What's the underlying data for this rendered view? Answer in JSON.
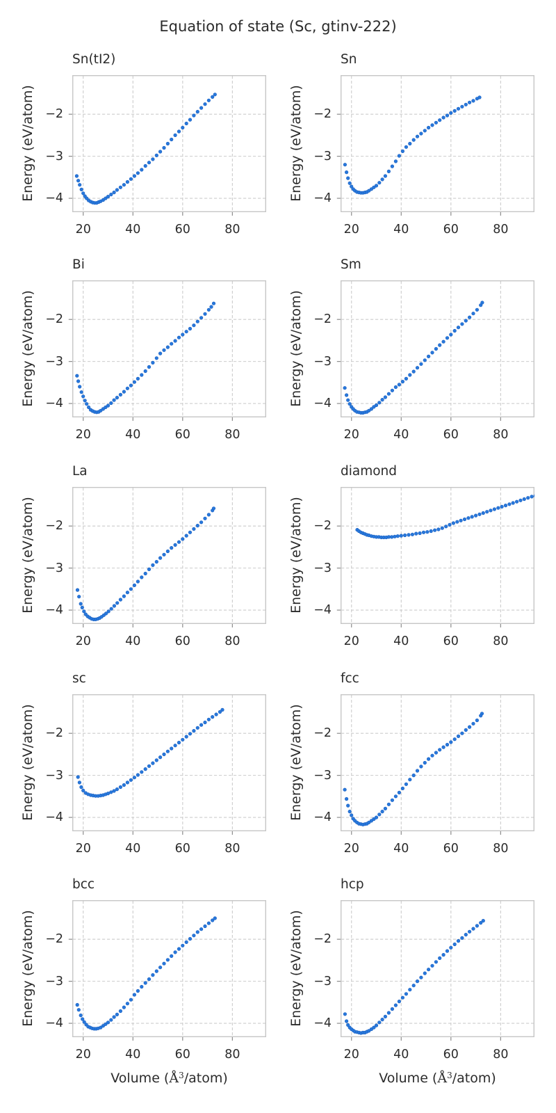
{
  "figure": {
    "title": "Equation of state (Sc, gtinv-222)",
    "ylabel": "Energy (eV/atom)",
    "xlabel": {
      "pre": "Volume (",
      "angstrom": "Å",
      "sup": "3",
      "post": "/atom)"
    },
    "x_ticks": {
      "values": [
        20,
        40,
        60,
        80
      ],
      "labels": [
        "20",
        "40",
        "60",
        "80"
      ]
    },
    "y_ticks": {
      "values": [
        -2,
        -3,
        -4
      ],
      "labels": [
        "−2",
        "−3",
        "−4"
      ]
    },
    "xlim": [
      15.6,
      93.6
    ],
    "ylim": [
      -4.33,
      -1.07
    ],
    "grid": "dashed",
    "legend": "none",
    "colors": {
      "marker": "#2878db",
      "marker_edge": "#1a5fc0",
      "grid": "#cccccc",
      "spine": "#c6c6c6",
      "tick_mark": "#8c8c8c",
      "text": "#2b2b2b",
      "background": "#ffffff"
    }
  },
  "chart_data": [
    {
      "type": "scatter",
      "title": "Sn(tI2)",
      "x": [
        17.4,
        18.0,
        18.6,
        19.3,
        20.0,
        20.7,
        21.4,
        22.2,
        23.0,
        23.8,
        24.6,
        25.4,
        26.2,
        27.0,
        28.0,
        29.0,
        30.0,
        31.2,
        32.4,
        33.6,
        35.0,
        36.4,
        37.8,
        39.2,
        40.6,
        42.0,
        43.5,
        45.0,
        46.5,
        48.0,
        49.5,
        51.0,
        52.5,
        54.0,
        55.5,
        57.0,
        58.5,
        60.0,
        61.5,
        63.0,
        64.5,
        66.0,
        67.5,
        69.0,
        70.5,
        72.0,
        73.0
      ],
      "y": [
        -3.47,
        -3.58,
        -3.68,
        -3.79,
        -3.88,
        -3.95,
        -4.0,
        -4.05,
        -4.08,
        -4.1,
        -4.11,
        -4.11,
        -4.09,
        -4.07,
        -4.04,
        -4.0,
        -3.96,
        -3.91,
        -3.86,
        -3.8,
        -3.74,
        -3.68,
        -3.61,
        -3.54,
        -3.47,
        -3.4,
        -3.32,
        -3.23,
        -3.15,
        -3.07,
        -2.98,
        -2.89,
        -2.8,
        -2.7,
        -2.6,
        -2.5,
        -2.41,
        -2.32,
        -2.22,
        -2.13,
        -2.03,
        -1.94,
        -1.85,
        -1.76,
        -1.67,
        -1.59,
        -1.53
      ]
    },
    {
      "type": "scatter",
      "title": "Sn",
      "x": [
        17.4,
        18.0,
        18.6,
        19.3,
        20.0,
        20.7,
        21.4,
        22.2,
        23.0,
        23.8,
        24.6,
        25.4,
        26.2,
        27.0,
        28.0,
        29.0,
        30.0,
        31.2,
        32.4,
        33.6,
        35.0,
        36.4,
        37.8,
        39.2,
        40.6,
        42.0,
        43.5,
        45.0,
        46.5,
        48.0,
        49.5,
        51.0,
        52.5,
        54.0,
        55.5,
        57.0,
        58.5,
        60.0,
        61.5,
        63.0,
        64.5,
        66.0,
        67.5,
        69.0,
        70.5,
        71.5
      ],
      "y": [
        -3.2,
        -3.38,
        -3.52,
        -3.64,
        -3.72,
        -3.78,
        -3.82,
        -3.85,
        -3.86,
        -3.87,
        -3.87,
        -3.86,
        -3.85,
        -3.82,
        -3.78,
        -3.74,
        -3.7,
        -3.63,
        -3.55,
        -3.47,
        -3.36,
        -3.24,
        -3.12,
        -2.99,
        -2.88,
        -2.78,
        -2.7,
        -2.61,
        -2.53,
        -2.46,
        -2.39,
        -2.32,
        -2.26,
        -2.2,
        -2.14,
        -2.08,
        -2.03,
        -1.97,
        -1.92,
        -1.87,
        -1.82,
        -1.77,
        -1.72,
        -1.68,
        -1.63,
        -1.6
      ]
    },
    {
      "type": "scatter",
      "title": "Bi",
      "x": [
        17.5,
        18.0,
        18.6,
        19.3,
        20.0,
        20.7,
        21.4,
        22.2,
        23.0,
        23.8,
        24.6,
        25.4,
        26.2,
        27.0,
        28.0,
        29.0,
        30.0,
        31.2,
        32.4,
        33.6,
        35.0,
        36.4,
        37.8,
        39.2,
        40.6,
        42.0,
        43.5,
        45.0,
        46.5,
        48.0,
        49.5,
        51.0,
        52.5,
        54.0,
        55.5,
        57.0,
        58.5,
        60.0,
        61.5,
        63.0,
        64.5,
        66.0,
        67.5,
        69.0,
        70.5,
        71.5,
        72.5
      ],
      "y": [
        -3.34,
        -3.47,
        -3.6,
        -3.73,
        -3.83,
        -3.93,
        -4.01,
        -4.09,
        -4.15,
        -4.18,
        -4.2,
        -4.21,
        -4.2,
        -4.17,
        -4.13,
        -4.09,
        -4.05,
        -3.99,
        -3.92,
        -3.86,
        -3.79,
        -3.72,
        -3.64,
        -3.57,
        -3.49,
        -3.41,
        -3.32,
        -3.23,
        -3.13,
        -3.03,
        -2.92,
        -2.81,
        -2.73,
        -2.66,
        -2.58,
        -2.51,
        -2.43,
        -2.36,
        -2.29,
        -2.22,
        -2.14,
        -2.05,
        -1.96,
        -1.87,
        -1.77,
        -1.7,
        -1.62
      ]
    },
    {
      "type": "scatter",
      "title": "Sm",
      "x": [
        17.3,
        18.0,
        18.6,
        19.3,
        20.0,
        20.7,
        21.4,
        22.2,
        23.0,
        23.8,
        24.6,
        25.4,
        26.2,
        27.0,
        28.0,
        29.0,
        30.0,
        31.2,
        32.4,
        33.6,
        35.0,
        36.4,
        37.8,
        39.2,
        40.6,
        42.0,
        43.5,
        45.0,
        46.5,
        48.0,
        49.5,
        51.0,
        52.5,
        54.0,
        55.5,
        57.0,
        58.5,
        60.0,
        61.5,
        63.0,
        64.5,
        66.0,
        67.5,
        69.0,
        70.5,
        72.0,
        72.6
      ],
      "y": [
        -3.63,
        -3.8,
        -3.92,
        -4.01,
        -4.08,
        -4.13,
        -4.17,
        -4.2,
        -4.21,
        -4.22,
        -4.22,
        -4.21,
        -4.2,
        -4.17,
        -4.13,
        -4.08,
        -4.04,
        -3.98,
        -3.91,
        -3.85,
        -3.77,
        -3.69,
        -3.61,
        -3.55,
        -3.48,
        -3.41,
        -3.32,
        -3.24,
        -3.15,
        -3.06,
        -2.97,
        -2.88,
        -2.79,
        -2.7,
        -2.61,
        -2.53,
        -2.44,
        -2.36,
        -2.27,
        -2.19,
        -2.11,
        -2.03,
        -1.95,
        -1.86,
        -1.77,
        -1.66,
        -1.6
      ]
    },
    {
      "type": "scatter",
      "title": "La",
      "x": [
        17.7,
        18.3,
        19.0,
        19.6,
        20.3,
        21.0,
        21.8,
        22.6,
        23.4,
        24.2,
        25.0,
        25.8,
        26.6,
        27.4,
        28.3,
        29.2,
        30.2,
        31.3,
        32.5,
        33.7,
        35.0,
        36.4,
        37.8,
        39.2,
        40.6,
        42.0,
        43.5,
        45.0,
        46.5,
        48.0,
        49.5,
        51.0,
        52.5,
        54.0,
        55.5,
        57.0,
        58.5,
        60.0,
        61.5,
        63.0,
        64.5,
        66.0,
        67.5,
        69.0,
        70.5,
        72.0,
        72.5
      ],
      "y": [
        -3.52,
        -3.68,
        -3.85,
        -3.94,
        -4.03,
        -4.1,
        -4.15,
        -4.18,
        -4.21,
        -4.22,
        -4.22,
        -4.21,
        -4.19,
        -4.16,
        -4.12,
        -4.08,
        -4.03,
        -3.97,
        -3.9,
        -3.83,
        -3.75,
        -3.67,
        -3.58,
        -3.5,
        -3.41,
        -3.32,
        -3.22,
        -3.13,
        -3.03,
        -2.93,
        -2.85,
        -2.76,
        -2.68,
        -2.6,
        -2.52,
        -2.45,
        -2.38,
        -2.31,
        -2.23,
        -2.15,
        -2.07,
        -1.99,
        -1.91,
        -1.82,
        -1.73,
        -1.63,
        -1.58
      ]
    },
    {
      "type": "scatter",
      "title": "diamond",
      "x": [
        22.3,
        23.0,
        23.8,
        24.6,
        25.4,
        26.2,
        27.0,
        28.0,
        29.0,
        30.0,
        31.0,
        32.0,
        33.0,
        34.0,
        35.0,
        36.2,
        37.4,
        38.6,
        40.0,
        41.5,
        43.0,
        44.5,
        46.0,
        47.5,
        49.0,
        50.5,
        52.0,
        53.5,
        55.0,
        56.5,
        58.0,
        59.5,
        61.0,
        62.5,
        64.0,
        65.5,
        67.0,
        68.5,
        70.0,
        71.5,
        73.0,
        74.5,
        76.0,
        77.5,
        79.0,
        80.5,
        82.0,
        83.5,
        85.0,
        86.5,
        88.0,
        89.5,
        91.0,
        92.5,
        94.0
      ],
      "y": [
        -2.09,
        -2.12,
        -2.15,
        -2.17,
        -2.19,
        -2.21,
        -2.22,
        -2.24,
        -2.25,
        -2.26,
        -2.26,
        -2.27,
        -2.27,
        -2.27,
        -2.26,
        -2.26,
        -2.25,
        -2.24,
        -2.23,
        -2.22,
        -2.21,
        -2.2,
        -2.18,
        -2.17,
        -2.15,
        -2.14,
        -2.12,
        -2.1,
        -2.08,
        -2.05,
        -2.01,
        -1.97,
        -1.93,
        -1.9,
        -1.87,
        -1.84,
        -1.81,
        -1.78,
        -1.75,
        -1.72,
        -1.69,
        -1.66,
        -1.63,
        -1.6,
        -1.57,
        -1.54,
        -1.51,
        -1.48,
        -1.45,
        -1.42,
        -1.39,
        -1.36,
        -1.33,
        -1.3,
        -1.28
      ]
    },
    {
      "type": "scatter",
      "title": "sc",
      "x": [
        17.9,
        18.5,
        19.2,
        20.0,
        21.0,
        22.0,
        23.0,
        24.0,
        25.0,
        26.0,
        27.0,
        28.0,
        29.0,
        30.0,
        31.2,
        32.4,
        33.6,
        35.0,
        36.4,
        37.8,
        39.2,
        40.6,
        42.0,
        43.5,
        45.0,
        46.5,
        48.0,
        49.5,
        51.0,
        52.5,
        54.0,
        55.5,
        57.0,
        58.5,
        60.0,
        61.5,
        63.0,
        64.5,
        66.0,
        67.5,
        69.0,
        70.5,
        72.0,
        73.5,
        75.0,
        76.0
      ],
      "y": [
        -3.04,
        -3.17,
        -3.28,
        -3.36,
        -3.42,
        -3.45,
        -3.47,
        -3.48,
        -3.49,
        -3.49,
        -3.48,
        -3.47,
        -3.45,
        -3.43,
        -3.4,
        -3.37,
        -3.33,
        -3.28,
        -3.23,
        -3.17,
        -3.11,
        -3.05,
        -2.99,
        -2.92,
        -2.85,
        -2.78,
        -2.71,
        -2.64,
        -2.57,
        -2.5,
        -2.43,
        -2.36,
        -2.29,
        -2.22,
        -2.15,
        -2.08,
        -2.01,
        -1.94,
        -1.87,
        -1.8,
        -1.74,
        -1.67,
        -1.61,
        -1.55,
        -1.49,
        -1.44
      ]
    },
    {
      "type": "scatter",
      "title": "fcc",
      "x": [
        17.3,
        18.0,
        18.6,
        19.3,
        20.0,
        20.7,
        21.4,
        22.2,
        23.0,
        23.8,
        24.6,
        25.4,
        26.2,
        27.0,
        28.0,
        29.0,
        30.0,
        31.2,
        32.4,
        33.6,
        35.0,
        36.4,
        37.8,
        39.2,
        40.6,
        42.0,
        43.5,
        45.0,
        46.5,
        48.0,
        49.5,
        51.0,
        52.5,
        54.0,
        55.5,
        57.0,
        58.5,
        60.0,
        61.5,
        63.0,
        64.5,
        66.0,
        67.5,
        69.0,
        70.5,
        72.0,
        72.5
      ],
      "y": [
        -3.34,
        -3.56,
        -3.72,
        -3.86,
        -3.95,
        -4.03,
        -4.08,
        -4.12,
        -4.15,
        -4.16,
        -4.17,
        -4.16,
        -4.15,
        -4.12,
        -4.08,
        -4.04,
        -4.0,
        -3.93,
        -3.86,
        -3.79,
        -3.69,
        -3.59,
        -3.5,
        -3.41,
        -3.31,
        -3.21,
        -3.1,
        -3.0,
        -2.89,
        -2.79,
        -2.7,
        -2.61,
        -2.53,
        -2.46,
        -2.39,
        -2.33,
        -2.27,
        -2.21,
        -2.14,
        -2.07,
        -2.0,
        -1.92,
        -1.85,
        -1.77,
        -1.69,
        -1.58,
        -1.53
      ]
    },
    {
      "type": "scatter",
      "title": "bcc",
      "x": [
        17.6,
        18.2,
        19.0,
        19.7,
        20.4,
        21.2,
        22.0,
        22.8,
        23.6,
        24.4,
        25.2,
        26.0,
        27.0,
        28.0,
        29.0,
        30.0,
        31.2,
        32.4,
        33.6,
        35.0,
        36.4,
        37.8,
        39.2,
        40.6,
        42.0,
        43.5,
        45.0,
        46.5,
        48.0,
        49.5,
        51.0,
        52.5,
        54.0,
        55.5,
        57.0,
        58.5,
        60.0,
        61.5,
        63.0,
        64.5,
        66.0,
        67.5,
        69.0,
        70.5,
        72.0,
        73.0
      ],
      "y": [
        -3.56,
        -3.68,
        -3.81,
        -3.9,
        -3.97,
        -4.03,
        -4.08,
        -4.1,
        -4.12,
        -4.13,
        -4.13,
        -4.12,
        -4.1,
        -4.06,
        -4.02,
        -3.98,
        -3.92,
        -3.85,
        -3.79,
        -3.71,
        -3.62,
        -3.53,
        -3.44,
        -3.32,
        -3.23,
        -3.13,
        -3.04,
        -2.95,
        -2.85,
        -2.76,
        -2.67,
        -2.58,
        -2.49,
        -2.4,
        -2.31,
        -2.23,
        -2.15,
        -2.07,
        -1.99,
        -1.91,
        -1.83,
        -1.76,
        -1.69,
        -1.62,
        -1.55,
        -1.5
      ]
    },
    {
      "type": "scatter",
      "title": "hcp",
      "x": [
        17.4,
        18.0,
        18.6,
        19.3,
        20.0,
        20.7,
        21.4,
        22.2,
        23.0,
        23.8,
        24.6,
        25.4,
        26.2,
        27.0,
        28.0,
        29.0,
        30.0,
        31.2,
        32.4,
        33.6,
        35.0,
        36.4,
        37.8,
        39.2,
        40.6,
        42.0,
        43.5,
        45.0,
        46.5,
        48.0,
        49.5,
        51.0,
        52.5,
        54.0,
        55.5,
        57.0,
        58.5,
        60.0,
        61.5,
        63.0,
        64.5,
        66.0,
        67.5,
        69.0,
        70.5,
        72.0,
        73.0
      ],
      "y": [
        -3.78,
        -3.95,
        -4.04,
        -4.1,
        -4.14,
        -4.17,
        -4.2,
        -4.21,
        -4.22,
        -4.23,
        -4.22,
        -4.22,
        -4.2,
        -4.18,
        -4.14,
        -4.1,
        -4.05,
        -3.98,
        -3.91,
        -3.84,
        -3.75,
        -3.66,
        -3.57,
        -3.48,
        -3.39,
        -3.3,
        -3.2,
        -3.1,
        -3.0,
        -2.91,
        -2.81,
        -2.72,
        -2.63,
        -2.54,
        -2.45,
        -2.37,
        -2.28,
        -2.2,
        -2.12,
        -2.04,
        -1.97,
        -1.89,
        -1.82,
        -1.75,
        -1.68,
        -1.61,
        -1.56
      ]
    }
  ]
}
